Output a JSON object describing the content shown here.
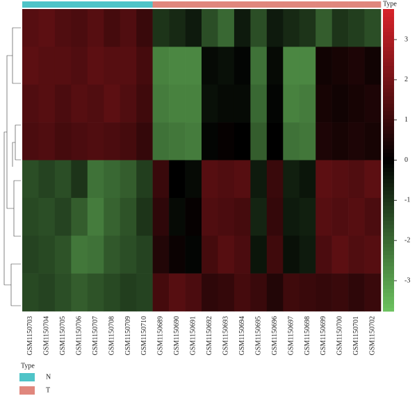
{
  "chart_data": {
    "type": "heatmap",
    "columns": [
      "GSM1150703",
      "GSM1150704",
      "GSM1150705",
      "GSM1150706",
      "GSM1150707",
      "GSM1150708",
      "GSM1150709",
      "GSM1150710",
      "GSM1150689",
      "GSM1150690",
      "GSM1150691",
      "GSM1150692",
      "GSM1150693",
      "GSM1150694",
      "GSM1150695",
      "GSM1150696",
      "GSM1150697",
      "GSM1150698",
      "GSM1150699",
      "GSM1150700",
      "GSM1150701",
      "GSM1150702"
    ],
    "column_types": [
      "N",
      "N",
      "N",
      "N",
      "N",
      "N",
      "N",
      "N",
      "T",
      "T",
      "T",
      "T",
      "T",
      "T",
      "T",
      "T",
      "T",
      "T",
      "T",
      "T",
      "T",
      "T"
    ],
    "annotation_label": "Type",
    "legend": {
      "title": "Type",
      "items": [
        {
          "name": "N",
          "color": "#4fc4c8"
        },
        {
          "name": "T",
          "color": "#e0877d"
        }
      ]
    },
    "colors": {
      "low": "#6cc35f",
      "mid": "#000000",
      "high": "#d8232a"
    },
    "matrix": [
      [
        1.5,
        1.6,
        1.4,
        1.3,
        1.5,
        1.2,
        1.4,
        1.0,
        -1.0,
        -0.8,
        -0.5,
        -1.5,
        -2.0,
        -0.5,
        -1.5,
        -0.5,
        -0.8,
        -1.0,
        -1.8,
        -1.0,
        -1.2,
        -1.5
      ],
      [
        1.6,
        1.5,
        1.5,
        1.4,
        1.6,
        1.5,
        1.5,
        1.2,
        -2.5,
        -2.6,
        -2.6,
        -0.2,
        -0.3,
        -0.1,
        -2.2,
        -0.2,
        -2.6,
        -2.6,
        0.3,
        0.4,
        0.5,
        0.3
      ],
      [
        1.4,
        1.5,
        1.3,
        1.5,
        1.4,
        1.6,
        1.4,
        1.1,
        -2.4,
        -2.5,
        -2.5,
        -0.3,
        -0.2,
        -0.2,
        -2.0,
        -0.1,
        -2.5,
        -2.4,
        0.4,
        0.3,
        0.4,
        0.5
      ],
      [
        1.3,
        1.4,
        1.2,
        1.3,
        1.4,
        1.3,
        1.2,
        0.9,
        -2.2,
        -2.3,
        -2.4,
        -0.1,
        0.1,
        0.0,
        -1.8,
        0.0,
        -2.2,
        -2.3,
        0.5,
        0.4,
        0.5,
        0.4
      ],
      [
        -1.5,
        -1.3,
        -1.5,
        -1.0,
        -2.2,
        -2.0,
        -1.8,
        -1.2,
        1.0,
        0.0,
        -0.2,
        1.5,
        1.4,
        1.5,
        -0.5,
        1.0,
        -0.6,
        -0.4,
        1.6,
        1.5,
        1.4,
        1.6
      ],
      [
        -1.4,
        -1.5,
        -1.3,
        -1.8,
        -2.4,
        -1.9,
        -1.6,
        -1.0,
        0.8,
        -0.2,
        0.1,
        1.4,
        1.3,
        1.2,
        -0.7,
        0.9,
        -0.5,
        -0.6,
        1.5,
        1.4,
        1.5,
        1.3
      ],
      [
        -1.3,
        -1.4,
        -1.6,
        -2.3,
        -2.2,
        -1.7,
        -1.5,
        -1.3,
        0.6,
        0.2,
        -0.1,
        1.2,
        1.5,
        1.3,
        -0.4,
        1.1,
        -0.3,
        -0.5,
        1.3,
        1.6,
        1.4,
        1.5
      ],
      [
        -1.4,
        -1.3,
        -1.5,
        -1.8,
        -1.6,
        -1.4,
        -1.2,
        -1.3,
        1.2,
        1.5,
        1.3,
        0.8,
        0.9,
        1.2,
        1.0,
        0.6,
        1.1,
        1.0,
        0.9,
        1.0,
        0.8,
        1.0
      ]
    ],
    "colorbar": {
      "lim": [
        -3.76,
        3.76
      ],
      "ticks": [
        -3,
        -2,
        -1,
        0,
        1,
        2,
        3
      ]
    }
  }
}
